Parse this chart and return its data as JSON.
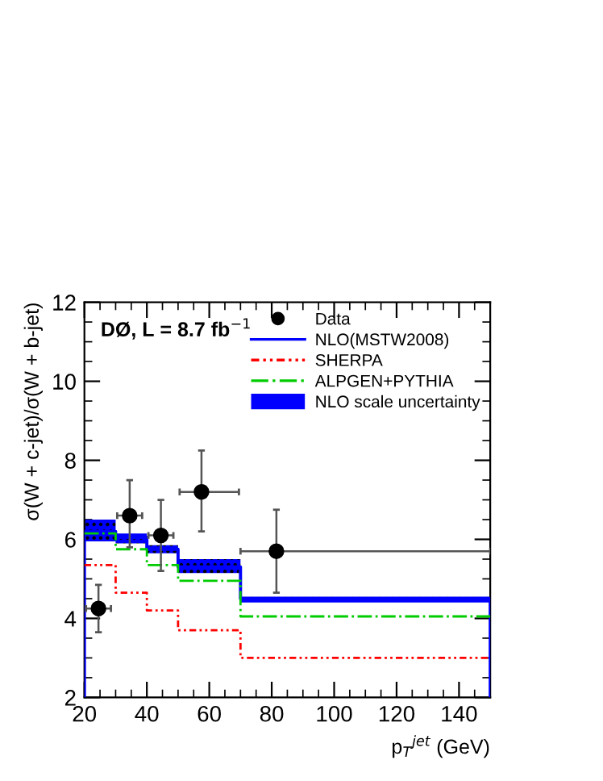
{
  "chart_data": {
    "type": "step",
    "xlabel": "p$_{T}$$^{jet}$ (GeV)",
    "ylabel": "σ(W + c-jet)/σ(W + b-jet)",
    "annotations": [
      "DØ, L = 8.7 fb$^{−1}$",
      "NLO scale uncertainty"
    ],
    "xlim": [
      20,
      150
    ],
    "xticks": [
      20,
      40,
      60,
      80,
      100,
      120,
      140
    ],
    "ylim": [
      2,
      12
    ],
    "yticks": [
      2,
      4,
      6,
      8,
      10,
      12
    ],
    "grid": false,
    "legend": "top right",
    "series": [
      {
        "name": "Data",
        "type": "scatter",
        "color": "#000000",
        "marker": "circle",
        "x": [
          24.5,
          34.5,
          44.5,
          57.5,
          81.5
        ],
        "values": [
          4.25,
          6.6,
          6.1,
          7.2,
          5.7
        ],
        "errors": [
          [
            3.65,
            4.85
          ],
          [
            5.8,
            7.5
          ],
          [
            5.2,
            7.0
          ],
          [
            6.2,
            8.25
          ],
          [
            4.65,
            6.75
          ]
        ],
        "xerrors": [
          [
            20.5,
            28.5
          ],
          [
            30.5,
            38.5
          ],
          [
            40.5,
            48.5
          ],
          [
            50.5,
            69.5
          ],
          [
            70,
            150
          ]
        ]
      },
      {
        "name": "NLO(MSTW2008)",
        "color": "#0000ff",
        "line_style": "solid",
        "x": [
          20,
          30,
          40,
          50,
          70,
          150
        ],
        "values": [
          6.2,
          6.05,
          5.75,
          5.3,
          4.5,
          4.5
        ],
        "lower": [
          5.95,
          5.9,
          5.65,
          5.15,
          4.4,
          4.4
        ],
        "upper": [
          6.5,
          6.15,
          5.85,
          5.5,
          4.55,
          4.55
        ]
      },
      {
        "name": "SHERPA",
        "color": "#ff0000",
        "line_style": "dotted",
        "x": [
          20,
          30,
          40,
          50,
          70,
          150
        ],
        "values": [
          5.35,
          4.65,
          4.2,
          3.7,
          3.0,
          3.0
        ]
      },
      {
        "name": "ALPGEN+PYTHIA",
        "color": "#00cc00",
        "line_style": "dashed",
        "x": [
          20,
          30,
          40,
          50,
          70,
          150
        ],
        "values": [
          6.15,
          5.75,
          5.35,
          4.95,
          4.05,
          4.05
        ]
      }
    ]
  }
}
